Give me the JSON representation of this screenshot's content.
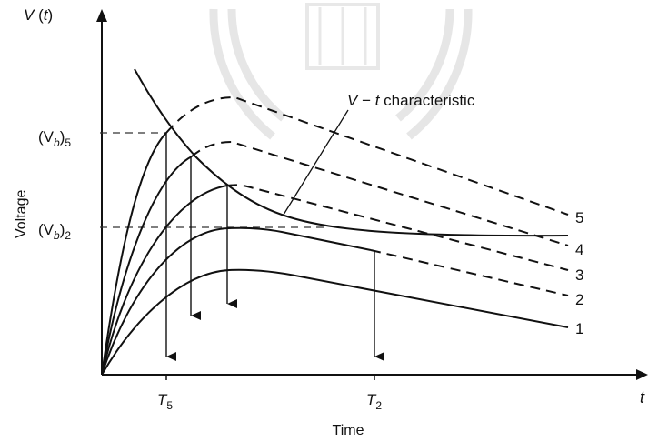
{
  "axes": {
    "y_label_var": "V",
    "y_label_arg": "t",
    "y_label_title": "Voltage",
    "x_label_var": "t",
    "x_label_title": "Time"
  },
  "ticks": {
    "vb5_base": "(V",
    "vb5_sub_b": "b",
    "vb5_close": ")",
    "vb5_sub_n": "5",
    "vb2_base": "(V",
    "vb2_sub_b": "b",
    "vb2_close": ")",
    "vb2_sub_n": "2",
    "t5_base": "T",
    "t5_sub": "5",
    "t2_base": "T",
    "t2_sub": "2"
  },
  "annotation": {
    "vt_var_v": "V",
    "vt_dash": " − ",
    "vt_var_t": "t",
    "vt_rest": " characteristic"
  },
  "curve_labels": [
    "5",
    "4",
    "3",
    "2",
    "1"
  ]
}
